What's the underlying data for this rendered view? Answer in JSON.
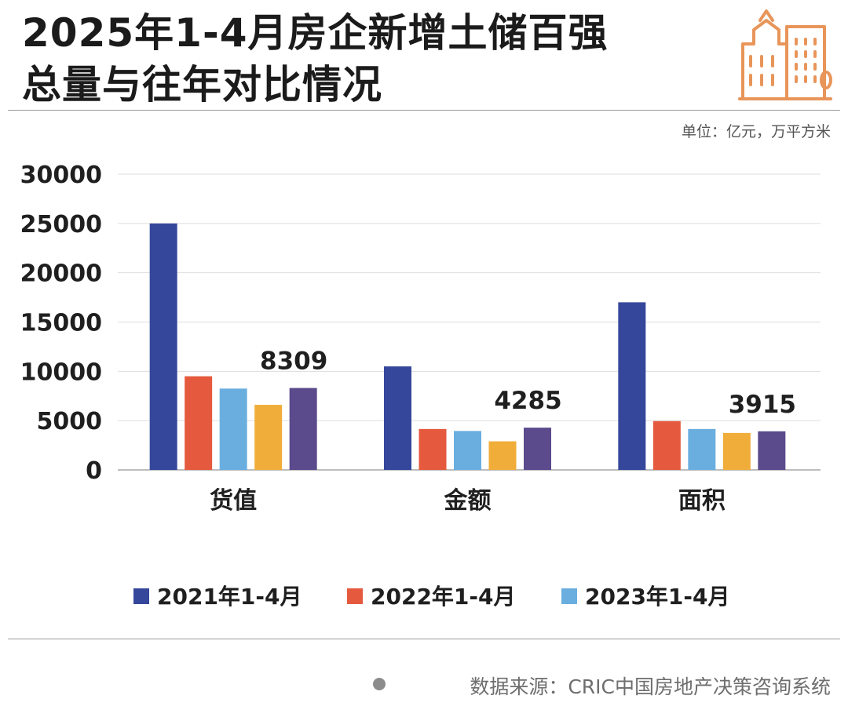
{
  "header": {
    "title_line_1": "2025年1-4月房企新增土储百强",
    "title_line_2": "总量与往年对比情况",
    "unit": "单位：亿元，万平方米"
  },
  "footer": {
    "source": "数据来源：CRIC中国房地产决策咨询系统"
  },
  "colors": {
    "series": [
      "#34479b",
      "#e55a3e",
      "#6aaee0",
      "#f0ad3a",
      "#5b4a8c"
    ],
    "grid": "#dddddd",
    "axis": "#bdbdbd"
  },
  "chart_data": {
    "type": "bar",
    "title": "2025年1-4月房企新增土储百强总量与往年对比情况",
    "categories": [
      "货值",
      "金额",
      "面积"
    ],
    "series": [
      {
        "name": "2021年1-4月",
        "values": [
          25000,
          10500,
          17000
        ]
      },
      {
        "name": "2022年1-4月",
        "values": [
          9500,
          4150,
          4950
        ]
      },
      {
        "name": "2023年1-4月",
        "values": [
          8250,
          3950,
          4150
        ]
      },
      {
        "name": "",
        "values": [
          6600,
          2900,
          3750
        ]
      },
      {
        "name": "",
        "values": [
          8309,
          4285,
          3915
        ]
      }
    ],
    "legend_entries": [
      "2021年1-4月",
      "2022年1-4月",
      "2023年1-4月"
    ],
    "data_labels": [
      {
        "category": "货值",
        "series_index": 4,
        "text": "8309"
      },
      {
        "category": "金额",
        "series_index": 4,
        "text": "4285"
      },
      {
        "category": "面积",
        "series_index": 4,
        "text": "3915"
      }
    ],
    "yticks": [
      0,
      5000,
      10000,
      15000,
      20000,
      25000,
      30000
    ],
    "ylim": [
      0,
      30000
    ],
    "grid": true,
    "legend_position": "bottom",
    "xlabel": "",
    "ylabel": ""
  }
}
